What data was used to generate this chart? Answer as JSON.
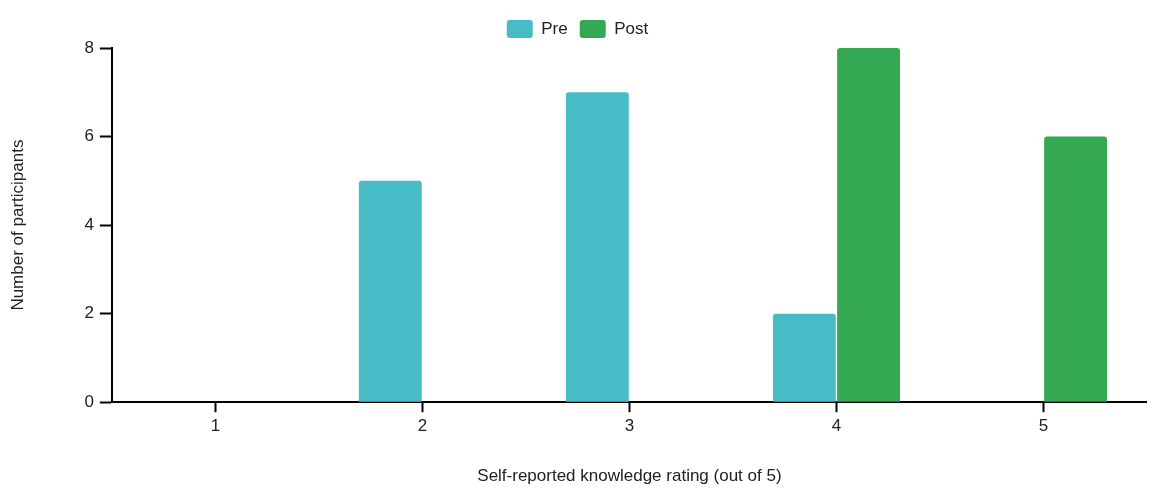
{
  "chart_data": {
    "type": "bar",
    "xlabel": "Self-reported knowledge rating (out of 5)",
    "ylabel": "Number of participants",
    "categories": [
      "1",
      "2",
      "3",
      "4",
      "5"
    ],
    "series": [
      {
        "name": "Pre",
        "color": "#47bbc6",
        "values": [
          0,
          5,
          7,
          2,
          0
        ]
      },
      {
        "name": "Post",
        "color": "#34a853",
        "values": [
          0,
          0,
          0,
          8,
          6
        ]
      }
    ],
    "ylim": [
      0,
      8
    ],
    "yticks": [
      0,
      2,
      4,
      6,
      8
    ],
    "grid": false,
    "legend": "top"
  }
}
